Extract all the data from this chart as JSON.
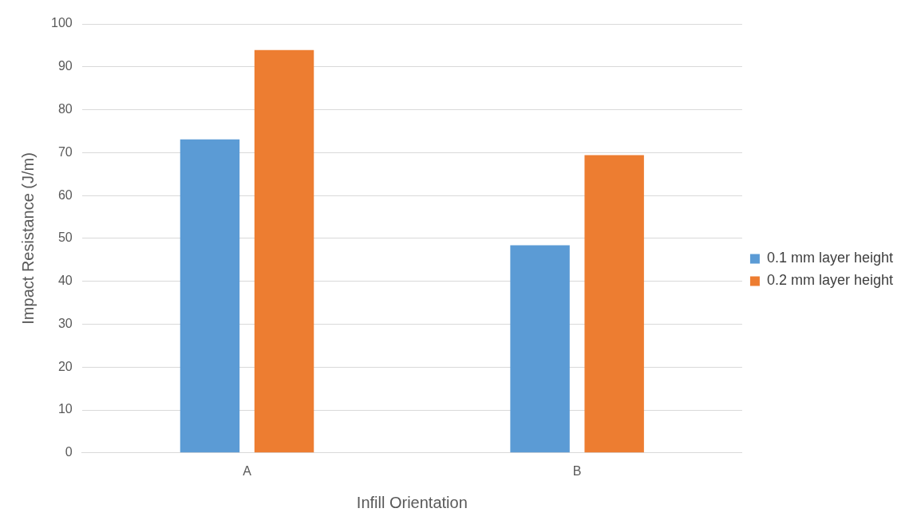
{
  "chart_data": {
    "type": "bar",
    "xlabel": "Infill Orientation",
    "ylabel": "Impact Resistance (J/m)",
    "categories": [
      "A",
      "B"
    ],
    "series": [
      {
        "name": "0.1 mm layer height",
        "color": "#5b9bd5",
        "values": [
          73.1,
          48.4
        ]
      },
      {
        "name": "0.2 mm layer height",
        "color": "#ed7d31",
        "values": [
          93.9,
          69.4
        ]
      }
    ],
    "ylim": [
      0,
      100
    ],
    "yticks": [
      0,
      10,
      20,
      30,
      40,
      50,
      60,
      70,
      80,
      90,
      100
    ],
    "grid": "y",
    "legend": "right"
  }
}
